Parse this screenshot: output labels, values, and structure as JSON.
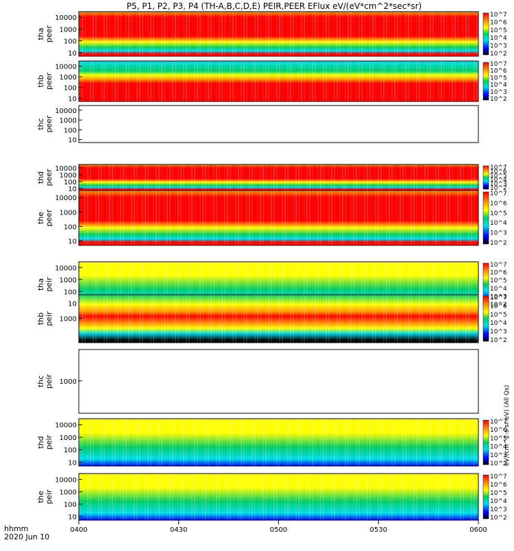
{
  "chart_data": {
    "type": "heatmap",
    "title": "P5, P1, P2, P3, P4 (TH-A,B,C,D,E) PEIR,PEER EFlux eV/(eV*cm^2*sec*sr)",
    "x_axis": {
      "label_line1": "hhmm",
      "label_line2": "2020 Jun 10",
      "ticks": [
        "0400",
        "0430",
        "0500",
        "0530",
        "0600"
      ],
      "range": [
        "04:00",
        "06:00"
      ]
    },
    "colorbar_ticks": [
      "10^2",
      "10^3",
      "10^4",
      "10^5",
      "10^6",
      "10^7"
    ],
    "colorbar_label": "eV/(cm^2-s-sr-eV) (All Qs)",
    "colors": {
      "red": "#ff0000",
      "orange": "#ff9900",
      "yellow": "#ffff00",
      "green": "#00cc66",
      "cyan": "#00ddee",
      "blue": "#0000ff",
      "black": "#000000"
    },
    "panels": [
      {
        "id": "tha-peer",
        "probe": "tha",
        "species": "peer",
        "ylog": true,
        "yticks": [
          "10000",
          "1000",
          "100",
          "10"
        ],
        "ylim": [
          5,
          30000
        ],
        "pattern": "electron_a",
        "has_colorbar": true,
        "empty": false
      },
      {
        "id": "thb-peer",
        "probe": "thb",
        "species": "peer",
        "ylog": true,
        "yticks": [
          "10000",
          "1000",
          "100",
          "10"
        ],
        "ylim": [
          5,
          30000
        ],
        "pattern": "electron_b",
        "has_colorbar": true,
        "empty": false
      },
      {
        "id": "thc-peer",
        "probe": "thc",
        "species": "peer",
        "ylog": true,
        "yticks": [
          "10000",
          "1000",
          "100",
          "10"
        ],
        "ylim": [
          5,
          30000
        ],
        "pattern": "empty",
        "has_colorbar": false,
        "empty": true
      },
      {
        "id": "thd-peer",
        "probe": "thd",
        "species": "peer",
        "ylog": true,
        "yticks": [
          "10000",
          "1000",
          "100",
          "10"
        ],
        "ylim": [
          5,
          30000
        ],
        "pattern": "electron_d",
        "has_colorbar": true,
        "empty": false
      },
      {
        "id": "the-peer",
        "probe": "the",
        "species": "peer",
        "ylog": true,
        "yticks": [
          "10000",
          "1000",
          "100",
          "10"
        ],
        "ylim": [
          5,
          30000
        ],
        "pattern": "electron_e",
        "has_colorbar": true,
        "empty": false
      },
      {
        "id": "tha-peir",
        "probe": "tha",
        "species": "peir",
        "ylog": true,
        "yticks": [
          "10000",
          "1000",
          "100",
          "10"
        ],
        "ylim": [
          5,
          30000
        ],
        "pattern": "ion",
        "has_colorbar": true,
        "empty": false
      },
      {
        "id": "thb-peir",
        "probe": "thb",
        "species": "peir",
        "ylog": true,
        "yticks": [
          "1000"
        ],
        "ylim": [
          30,
          30000
        ],
        "pattern": "ion_b",
        "has_colorbar": true,
        "empty": false
      },
      {
        "id": "thc-peir",
        "probe": "thc",
        "species": "peir",
        "ylog": true,
        "yticks": [
          "1000"
        ],
        "ylim": [
          30,
          30000
        ],
        "pattern": "empty",
        "has_colorbar": false,
        "empty": true
      },
      {
        "id": "thd-peir",
        "probe": "thd",
        "species": "peir",
        "ylog": true,
        "yticks": [
          "10000",
          "1000",
          "100",
          "10"
        ],
        "ylim": [
          5,
          30000
        ],
        "pattern": "ion",
        "has_colorbar": true,
        "empty": false
      },
      {
        "id": "the-peir",
        "probe": "the",
        "species": "peir",
        "ylog": true,
        "yticks": [
          "10000",
          "1000",
          "100",
          "10"
        ],
        "ylim": [
          5,
          30000
        ],
        "pattern": "ion",
        "has_colorbar": true,
        "empty": false
      }
    ]
  }
}
